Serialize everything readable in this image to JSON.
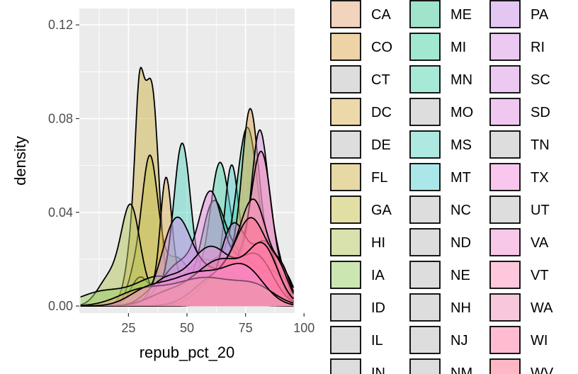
{
  "chart_data": {
    "type": "area",
    "subtype": "density",
    "xlabel": "repub_pct_20",
    "ylabel": "density",
    "xlim": [
      4,
      96
    ],
    "ylim": [
      -0.003,
      0.127
    ],
    "x_ticks": [
      25,
      50,
      75,
      100
    ],
    "x_tick_labels": [
      "25",
      "50",
      "75",
      "100"
    ],
    "y_ticks": [
      0.0,
      0.04,
      0.08,
      0.12
    ],
    "y_tick_labels": [
      "0.00",
      "0.04",
      "0.08",
      "0.12"
    ],
    "grid": true,
    "panel_background": "#ebebeb",
    "fill_opacity": 0.5,
    "legend_position": "right",
    "legend_columns": [
      [
        "CA",
        "CO",
        "CT",
        "DC",
        "DE",
        "FL",
        "GA",
        "HI",
        "IA",
        "ID",
        "IL",
        "IN"
      ],
      [
        "ME",
        "MI",
        "MN",
        "MO",
        "MS",
        "MT",
        "NC",
        "ND",
        "NE",
        "NH",
        "NJ",
        "NM"
      ],
      [
        "PA",
        "RI",
        "SC",
        "SD",
        "TN",
        "TX",
        "UT",
        "VA",
        "VT",
        "WA",
        "WI",
        "WV"
      ]
    ],
    "series": [
      {
        "name": "FL",
        "color": "#cdb44a",
        "components": [
          [
            32,
            4.5,
            0.085
          ],
          [
            29.5,
            1.5,
            0.025
          ],
          [
            36,
            2.2,
            0.03
          ],
          [
            60,
            8,
            0.018
          ]
        ]
      },
      {
        "name": "GA",
        "color": "#c6c04c",
        "components": [
          [
            34,
            3.5,
            0.06
          ],
          [
            27,
            3,
            0.01
          ],
          [
            45,
            6,
            0.02
          ],
          [
            65,
            8,
            0.015
          ]
        ]
      },
      {
        "name": "DC",
        "color": "#dcb256",
        "components": [
          [
            41,
            2.5,
            0.05
          ],
          [
            30,
            4,
            0.012
          ],
          [
            58,
            10,
            0.02
          ]
        ]
      },
      {
        "name": "HI",
        "color": "#b4c45a",
        "components": [
          [
            26,
            4,
            0.04
          ],
          [
            17,
            5,
            0.012
          ],
          [
            48,
            10,
            0.012
          ],
          [
            70,
            10,
            0.01
          ]
        ]
      },
      {
        "name": "IA",
        "color": "#9acd66",
        "components": [
          [
            14,
            10,
            0.006
          ],
          [
            38,
            10,
            0.012
          ],
          [
            68,
            12,
            0.01
          ]
        ]
      },
      {
        "name": "MS",
        "color": "#5cd3c4",
        "components": [
          [
            48,
            3.5,
            0.06
          ],
          [
            43,
            7,
            0.01
          ],
          [
            63,
            7,
            0.018
          ],
          [
            80,
            6,
            0.01
          ]
        ]
      },
      {
        "name": "MN",
        "color": "#4fd4b0",
        "components": [
          [
            64,
            4,
            0.05
          ],
          [
            54,
            8,
            0.012
          ],
          [
            75,
            7,
            0.02
          ]
        ]
      },
      {
        "name": "MT",
        "color": "#58cfd2",
        "components": [
          [
            69,
            3,
            0.05
          ],
          [
            60,
            7,
            0.01
          ],
          [
            78,
            6,
            0.018
          ]
        ]
      },
      {
        "name": "MI",
        "color": "#46d2a4",
        "components": [
          [
            76,
            4.5,
            0.07
          ],
          [
            63,
            8,
            0.02
          ],
          [
            88,
            5,
            0.015
          ]
        ]
      },
      {
        "name": "ME",
        "color": "#40c997",
        "components": [
          [
            61,
            5,
            0.04
          ],
          [
            72,
            6,
            0.02
          ],
          [
            45,
            8,
            0.008
          ]
        ]
      },
      {
        "name": "CO",
        "color": "#dca84e",
        "components": [
          [
            77,
            3.5,
            0.07
          ],
          [
            68,
            7,
            0.02
          ],
          [
            85,
            5,
            0.02
          ]
        ]
      },
      {
        "name": "SC",
        "color": "#d994e2",
        "components": [
          [
            81,
            3.5,
            0.065
          ],
          [
            70,
            7,
            0.02
          ],
          [
            88,
            4,
            0.02
          ]
        ]
      },
      {
        "name": "WA",
        "color": "#f090b8",
        "components": [
          [
            82,
            4.5,
            0.06
          ],
          [
            70,
            8,
            0.018
          ],
          [
            93,
            3,
            0.01
          ]
        ]
      },
      {
        "name": "SD",
        "color": "#e090e0",
        "components": [
          [
            60,
            5,
            0.04
          ],
          [
            47,
            8,
            0.018
          ],
          [
            74,
            8,
            0.02
          ],
          [
            88,
            4,
            0.01
          ]
        ]
      },
      {
        "name": "PA",
        "color": "#c98ee6",
        "components": [
          [
            45,
            6,
            0.03
          ],
          [
            55,
            10,
            0.012
          ],
          [
            72,
            10,
            0.01
          ]
        ]
      },
      {
        "name": "RI",
        "color": "#d893e4",
        "components": [
          [
            70,
            6,
            0.035
          ],
          [
            84,
            5,
            0.025
          ]
        ]
      },
      {
        "name": "VT",
        "color": "#ff8fba",
        "components": [
          [
            79,
            6,
            0.04
          ],
          [
            66,
            9,
            0.015
          ],
          [
            91,
            3.5,
            0.012
          ]
        ]
      },
      {
        "name": "TX",
        "color": "#f38edb",
        "components": [
          [
            60,
            9,
            0.025
          ],
          [
            40,
            7,
            0.01
          ],
          [
            80,
            7,
            0.02
          ]
        ]
      },
      {
        "name": "WV",
        "color": "#ff6f8c",
        "components": [
          [
            78,
            7,
            0.035
          ],
          [
            62,
            9,
            0.012
          ],
          [
            90,
            4,
            0.01
          ]
        ]
      },
      {
        "name": "WI",
        "color": "#ff78a0",
        "components": [
          [
            65,
            12,
            0.02
          ],
          [
            83,
            6,
            0.02
          ],
          [
            40,
            8,
            0.004
          ]
        ]
      },
      {
        "name": "CA",
        "color": "#e6a77c",
        "components": [
          [
            58,
            14,
            0.012
          ],
          [
            30,
            10,
            0.006
          ],
          [
            80,
            8,
            0.006
          ]
        ]
      },
      {
        "name": "VA",
        "color": "#f38fd2",
        "components": [
          [
            55,
            12,
            0.014
          ],
          [
            75,
            8,
            0.014
          ],
          [
            33,
            8,
            0.006
          ]
        ]
      }
    ]
  }
}
